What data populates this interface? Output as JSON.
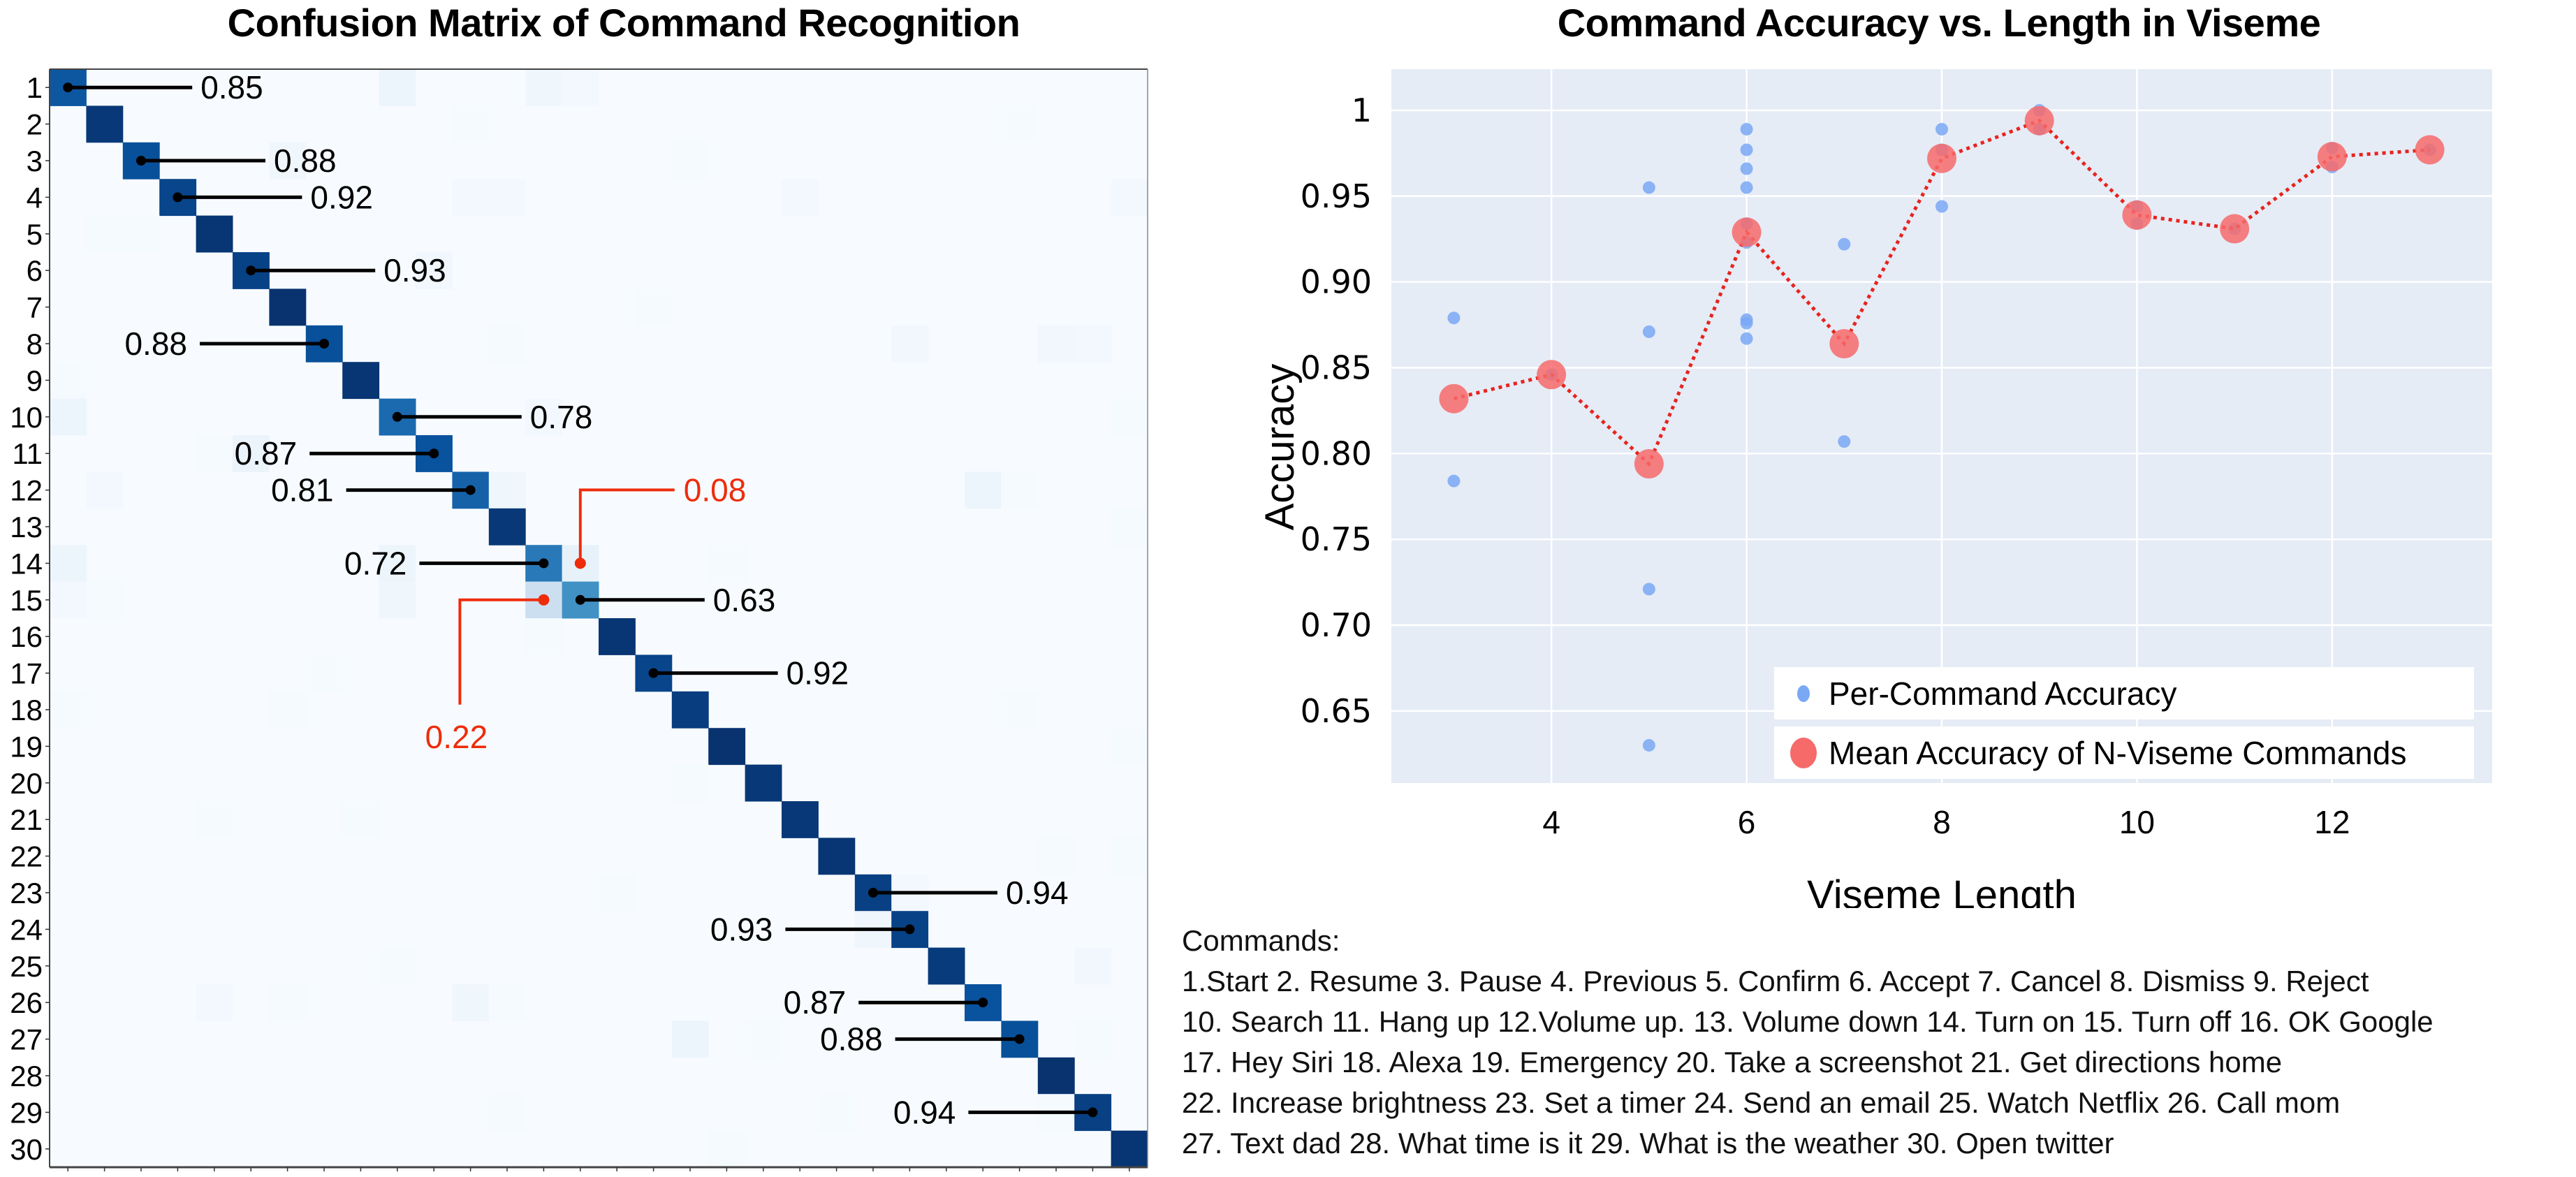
{
  "confusion_title": "Confusion Matrix of Command Recognition",
  "scatter_title": "Command Accuracy vs. Length in Viseme",
  "commands_heading": "Commands:",
  "commands_lines": [
    "1.Start  2. Resume  3. Pause  4. Previous  5. Confirm  6. Accept  7. Cancel  8. Dismiss  9. Reject",
    "10. Search  11. Hang up  12.Volume up. 13. Volume down 14. Turn on  15. Turn off 16. OK Google",
    "17. Hey Siri  18. Alexa 19. Emergency  20. Take a screenshot  21. Get directions home",
    "22. Increase brightness  23. Set a timer  24. Send an email  25. Watch Netflix  26. Call mom",
    "27. Text dad  28. What time is it  29. What is the weather  30. Open twitter"
  ],
  "colors": {
    "matrix_dark": "#08306b",
    "matrix_light": "#f7fbff",
    "annotation_black": "#000000",
    "annotation_red": "#ee2c0c",
    "plot_bg": "#e5ecf6",
    "grid": "#ffffff",
    "per_command": "#7aa8f5",
    "mean_marker": "#f76a6a",
    "mean_line": "#e8231d"
  },
  "chart_data": [
    {
      "type": "heatmap",
      "title": "Confusion Matrix of Command Recognition",
      "xlabel": "",
      "ylabel": "",
      "row_labels": [
        "1",
        "2",
        "3",
        "4",
        "5",
        "6",
        "7",
        "8",
        "9",
        "10",
        "11",
        "12",
        "13",
        "14",
        "15",
        "16",
        "17",
        "18",
        "19",
        "20",
        "21",
        "22",
        "23",
        "24",
        "25",
        "26",
        "27",
        "28",
        "29",
        "30"
      ],
      "colormap": "Blues",
      "range": [
        0,
        1
      ],
      "diagonal": [
        0.85,
        0.97,
        0.88,
        0.92,
        0.98,
        0.93,
        0.99,
        0.88,
        0.98,
        0.78,
        0.87,
        0.81,
        0.97,
        0.72,
        0.63,
        0.98,
        0.92,
        0.95,
        0.99,
        0.97,
        0.97,
        0.98,
        0.94,
        0.93,
        0.96,
        0.87,
        0.88,
        0.99,
        0.94,
        0.98
      ],
      "off_diagonal": [
        {
          "row": 1,
          "col": 10,
          "value": 0.05
        },
        {
          "row": 1,
          "col": 14,
          "value": 0.04
        },
        {
          "row": 1,
          "col": 15,
          "value": 0.02
        },
        {
          "row": 2,
          "col": 12,
          "value": 0.01
        },
        {
          "row": 2,
          "col": 27,
          "value": 0.01
        },
        {
          "row": 3,
          "col": 7,
          "value": 0.04
        },
        {
          "row": 3,
          "col": 18,
          "value": 0.01
        },
        {
          "row": 4,
          "col": 12,
          "value": 0.02
        },
        {
          "row": 4,
          "col": 13,
          "value": 0.02
        },
        {
          "row": 4,
          "col": 21,
          "value": 0.02
        },
        {
          "row": 4,
          "col": 30,
          "value": 0.02
        },
        {
          "row": 5,
          "col": 2,
          "value": 0.01
        },
        {
          "row": 5,
          "col": 3,
          "value": 0.01
        },
        {
          "row": 6,
          "col": 11,
          "value": 0.03
        },
        {
          "row": 7,
          "col": 17,
          "value": 0.01
        },
        {
          "row": 8,
          "col": 13,
          "value": 0.01
        },
        {
          "row": 8,
          "col": 24,
          "value": 0.03
        },
        {
          "row": 8,
          "col": 28,
          "value": 0.03
        },
        {
          "row": 8,
          "col": 29,
          "value": 0.02
        },
        {
          "row": 9,
          "col": 1,
          "value": 0.01
        },
        {
          "row": 10,
          "col": 1,
          "value": 0.05
        },
        {
          "row": 10,
          "col": 14,
          "value": 0.02
        },
        {
          "row": 10,
          "col": 30,
          "value": 0.01
        },
        {
          "row": 11,
          "col": 5,
          "value": 0.01
        },
        {
          "row": 11,
          "col": 6,
          "value": 0.06
        },
        {
          "row": 12,
          "col": 2,
          "value": 0.02
        },
        {
          "row": 12,
          "col": 13,
          "value": 0.04
        },
        {
          "row": 12,
          "col": 26,
          "value": 0.05
        },
        {
          "row": 12,
          "col": 27,
          "value": 0.01
        },
        {
          "row": 13,
          "col": 30,
          "value": 0.01
        },
        {
          "row": 14,
          "col": 1,
          "value": 0.05
        },
        {
          "row": 14,
          "col": 10,
          "value": 0.05
        },
        {
          "row": 14,
          "col": 15,
          "value": 0.08
        },
        {
          "row": 14,
          "col": 19,
          "value": 0.01
        },
        {
          "row": 15,
          "col": 1,
          "value": 0.02
        },
        {
          "row": 15,
          "col": 2,
          "value": 0.01
        },
        {
          "row": 15,
          "col": 10,
          "value": 0.04
        },
        {
          "row": 15,
          "col": 14,
          "value": 0.22
        },
        {
          "row": 16,
          "col": 14,
          "value": 0.01
        },
        {
          "row": 17,
          "col": 8,
          "value": 0.01
        },
        {
          "row": 18,
          "col": 1,
          "value": 0.01
        },
        {
          "row": 18,
          "col": 7,
          "value": 0.01
        },
        {
          "row": 18,
          "col": 27,
          "value": 0.01
        },
        {
          "row": 19,
          "col": 30,
          "value": 0.01
        },
        {
          "row": 20,
          "col": 18,
          "value": 0.01
        },
        {
          "row": 21,
          "col": 5,
          "value": 0.01
        },
        {
          "row": 21,
          "col": 9,
          "value": 0.01
        },
        {
          "row": 22,
          "col": 28,
          "value": 0.01
        },
        {
          "row": 22,
          "col": 30,
          "value": 0.01
        },
        {
          "row": 23,
          "col": 16,
          "value": 0.01
        },
        {
          "row": 23,
          "col": 24,
          "value": 0.02
        },
        {
          "row": 24,
          "col": 23,
          "value": 0.04
        },
        {
          "row": 25,
          "col": 10,
          "value": 0.01
        },
        {
          "row": 25,
          "col": 29,
          "value": 0.03
        },
        {
          "row": 26,
          "col": 5,
          "value": 0.02
        },
        {
          "row": 26,
          "col": 7,
          "value": 0.01
        },
        {
          "row": 26,
          "col": 12,
          "value": 0.04
        },
        {
          "row": 26,
          "col": 13,
          "value": 0.01
        },
        {
          "row": 27,
          "col": 18,
          "value": 0.05
        },
        {
          "row": 27,
          "col": 20,
          "value": 0.01
        },
        {
          "row": 27,
          "col": 29,
          "value": 0.01
        },
        {
          "row": 29,
          "col": 13,
          "value": 0.01
        },
        {
          "row": 29,
          "col": 22,
          "value": 0.01
        },
        {
          "row": 29,
          "col": 28,
          "value": 0.01
        },
        {
          "row": 30,
          "col": 19,
          "value": 0.01
        }
      ],
      "annotations": [
        {
          "row": 1,
          "col": 1,
          "text": "0.85",
          "side": "right",
          "color": "black"
        },
        {
          "row": 3,
          "col": 3,
          "text": "0.88",
          "side": "right",
          "color": "black"
        },
        {
          "row": 4,
          "col": 4,
          "text": "0.92",
          "side": "right",
          "color": "black"
        },
        {
          "row": 6,
          "col": 6,
          "text": "0.93",
          "side": "right",
          "color": "black"
        },
        {
          "row": 8,
          "col": 8,
          "text": "0.88",
          "side": "left",
          "color": "black"
        },
        {
          "row": 10,
          "col": 10,
          "text": "0.78",
          "side": "right",
          "color": "black"
        },
        {
          "row": 11,
          "col": 11,
          "text": "0.87",
          "side": "left",
          "color": "black"
        },
        {
          "row": 12,
          "col": 12,
          "text": "0.81",
          "side": "left",
          "color": "black"
        },
        {
          "row": 14,
          "col": 14,
          "text": "0.72",
          "side": "left",
          "color": "black"
        },
        {
          "row": 14,
          "col": 15,
          "text": "0.08",
          "side": "up-right",
          "color": "red"
        },
        {
          "row": 15,
          "col": 14,
          "text": "0.22",
          "side": "down-left",
          "color": "red"
        },
        {
          "row": 15,
          "col": 15,
          "text": "0.63",
          "side": "right",
          "color": "black"
        },
        {
          "row": 17,
          "col": 17,
          "text": "0.92",
          "side": "right",
          "color": "black"
        },
        {
          "row": 23,
          "col": 23,
          "text": "0.94",
          "side": "right",
          "color": "black"
        },
        {
          "row": 24,
          "col": 24,
          "text": "0.93",
          "side": "left",
          "color": "black"
        },
        {
          "row": 26,
          "col": 26,
          "text": "0.87",
          "side": "left",
          "color": "black"
        },
        {
          "row": 27,
          "col": 27,
          "text": "0.88",
          "side": "left",
          "color": "black"
        },
        {
          "row": 29,
          "col": 29,
          "text": "0.94",
          "side": "left",
          "color": "black"
        }
      ]
    },
    {
      "type": "scatter",
      "title": "Command Accuracy vs. Length in Viseme",
      "xlabel": "Viseme Length",
      "ylabel": "Accuracy",
      "xlim": [
        2.36,
        13.64
      ],
      "ylim": [
        0.608,
        1.024
      ],
      "xticks": [
        4,
        6,
        8,
        10,
        12
      ],
      "xtick_labels": [
        "4",
        "6",
        "8",
        "10",
        "12"
      ],
      "yticks": [
        0.65,
        0.7,
        0.75,
        0.8,
        0.85,
        0.9,
        0.95,
        1.0
      ],
      "ytick_labels": [
        "0.65",
        "0.70",
        "0.75",
        "0.80",
        "0.85",
        "0.90",
        "0.95",
        "1"
      ],
      "grid": true,
      "legend_position": "bottom-right",
      "series": [
        {
          "name": "Per-Command Accuracy",
          "kind": "points",
          "points": [
            {
              "x": 3,
              "y": 0.879
            },
            {
              "x": 3,
              "y": 0.784
            },
            {
              "x": 4,
              "y": 0.846
            },
            {
              "x": 5,
              "y": 0.955
            },
            {
              "x": 5,
              "y": 0.871
            },
            {
              "x": 5,
              "y": 0.721
            },
            {
              "x": 5,
              "y": 0.63
            },
            {
              "x": 6,
              "y": 0.989
            },
            {
              "x": 6,
              "y": 0.977
            },
            {
              "x": 6,
              "y": 0.966
            },
            {
              "x": 6,
              "y": 0.955
            },
            {
              "x": 6,
              "y": 0.934
            },
            {
              "x": 6,
              "y": 0.923
            },
            {
              "x": 6,
              "y": 0.878
            },
            {
              "x": 6,
              "y": 0.876
            },
            {
              "x": 6,
              "y": 0.867
            },
            {
              "x": 7,
              "y": 0.922
            },
            {
              "x": 7,
              "y": 0.807
            },
            {
              "x": 8,
              "y": 0.989
            },
            {
              "x": 8,
              "y": 0.977
            },
            {
              "x": 8,
              "y": 0.944
            },
            {
              "x": 9,
              "y": 1.0
            },
            {
              "x": 9,
              "y": 0.989
            },
            {
              "x": 10,
              "y": 0.944
            },
            {
              "x": 10,
              "y": 0.934
            },
            {
              "x": 11,
              "y": 0.931
            },
            {
              "x": 12,
              "y": 0.978
            },
            {
              "x": 12,
              "y": 0.967
            },
            {
              "x": 13,
              "y": 0.977
            }
          ]
        },
        {
          "name": "Mean Accuracy of N-Viseme Commands",
          "kind": "line+markers",
          "x": [
            3,
            4,
            5,
            6,
            7,
            8,
            9,
            10,
            11,
            12,
            13
          ],
          "y": [
            0.832,
            0.846,
            0.794,
            0.929,
            0.864,
            0.972,
            0.994,
            0.939,
            0.931,
            0.973,
            0.977
          ]
        }
      ]
    }
  ]
}
